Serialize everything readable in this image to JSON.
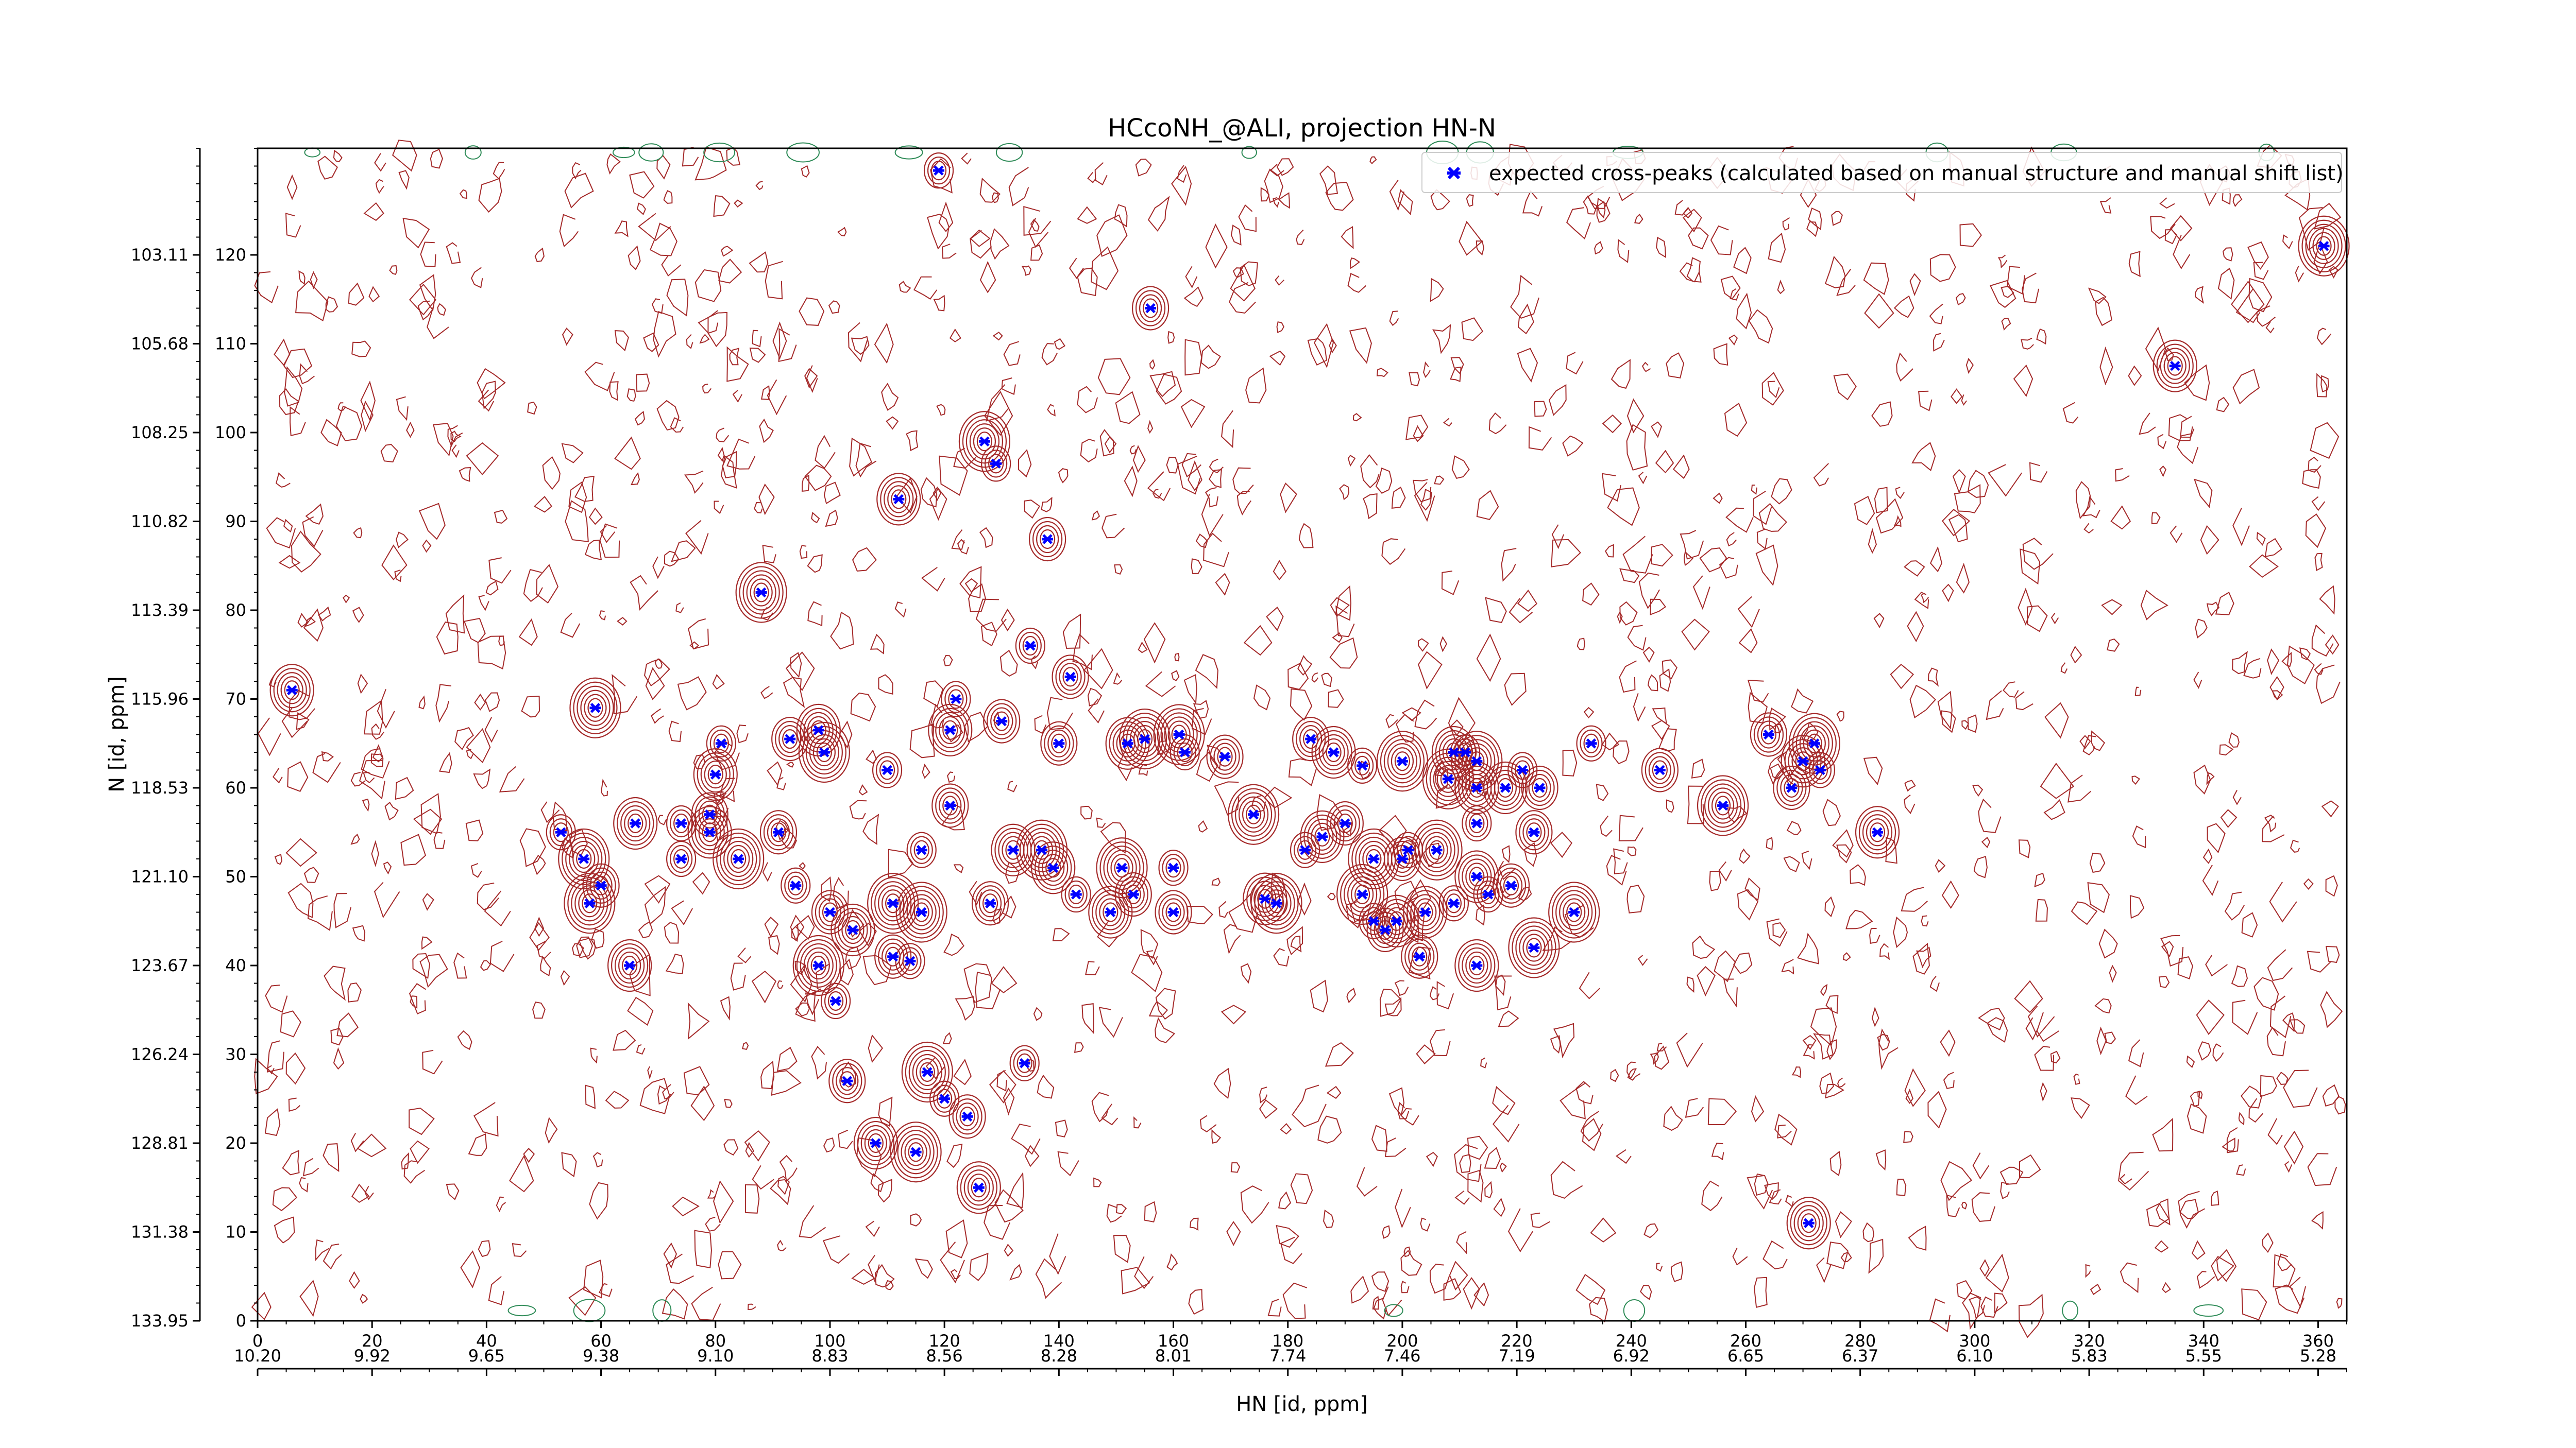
{
  "chart_data": {
    "type": "scatter",
    "title": "HCcoNH_@ALI, projection HN-N",
    "xlabel": "HN [id, ppm]",
    "ylabel": "N [id, ppm]",
    "xlim": [
      0,
      365
    ],
    "ylim": [
      0,
      132
    ],
    "grid": false,
    "legend_position": "top-right",
    "x_ticks": [
      "0",
      "20",
      "40",
      "60",
      "80",
      "100",
      "120",
      "140",
      "160",
      "180",
      "200",
      "220",
      "240",
      "260",
      "280",
      "300",
      "320",
      "340",
      "360"
    ],
    "x_ticks_secondary": [
      "10.20",
      "9.92",
      "9.65",
      "9.38",
      "9.10",
      "8.83",
      "8.56",
      "8.28",
      "8.01",
      "7.74",
      "7.46",
      "7.19",
      "6.92",
      "6.65",
      "6.37",
      "6.10",
      "5.83",
      "5.55",
      "5.28"
    ],
    "y_ticks": [
      "0",
      "10",
      "20",
      "30",
      "40",
      "50",
      "60",
      "70",
      "80",
      "90",
      "100",
      "110",
      "120"
    ],
    "y_ticks_secondary": [
      "133.95",
      "131.38",
      "128.81",
      "126.24",
      "123.67",
      "121.10",
      "118.53",
      "115.96",
      "113.39",
      "110.82",
      "108.25",
      "105.68",
      "103.11"
    ],
    "colors": {
      "marker": "#0000ff",
      "contour_positive": "#a52a2a",
      "contour_negative": "#2e8b57"
    },
    "series": [
      {
        "name": "expected cross-peaks (calculated based on manual structure and manual shift list)",
        "marker": "x",
        "points": [
          [
            119,
            129.5
          ],
          [
            156,
            114
          ],
          [
            335,
            107.5
          ],
          [
            127,
            99
          ],
          [
            129,
            96.5
          ],
          [
            138,
            88
          ],
          [
            112,
            92.5
          ],
          [
            88,
            82
          ],
          [
            135,
            76
          ],
          [
            142,
            72.5
          ],
          [
            6,
            71
          ],
          [
            59,
            69
          ],
          [
            122,
            70
          ],
          [
            130,
            67.5
          ],
          [
            121,
            66.5
          ],
          [
            161,
            66
          ],
          [
            81,
            65
          ],
          [
            93,
            65.5
          ],
          [
            98,
            66.5
          ],
          [
            99,
            64
          ],
          [
            110,
            62
          ],
          [
            140,
            65
          ],
          [
            152,
            65
          ],
          [
            155,
            65.5
          ],
          [
            162,
            64
          ],
          [
            169,
            63.5
          ],
          [
            188,
            64
          ],
          [
            200,
            63
          ],
          [
            193,
            62.5
          ],
          [
            184,
            65.5
          ],
          [
            186,
            54.5
          ],
          [
            174,
            57
          ],
          [
            233,
            65
          ],
          [
            245,
            62
          ],
          [
            209,
            64
          ],
          [
            213,
            63
          ],
          [
            221,
            62
          ],
          [
            224,
            60
          ],
          [
            218,
            60
          ],
          [
            256,
            58
          ],
          [
            74,
            56
          ],
          [
            79,
            57
          ],
          [
            80,
            61.5
          ],
          [
            84,
            52
          ],
          [
            94,
            49
          ],
          [
            91,
            55
          ],
          [
            79,
            55
          ],
          [
            111,
            47
          ],
          [
            116,
            53
          ],
          [
            121,
            58
          ],
          [
            132,
            53
          ],
          [
            137,
            53
          ],
          [
            143,
            48
          ],
          [
            128,
            47
          ],
          [
            139,
            51
          ],
          [
            151,
            51
          ],
          [
            160,
            51
          ],
          [
            153,
            48
          ],
          [
            149,
            46
          ],
          [
            116,
            46
          ],
          [
            114,
            40.5
          ],
          [
            111,
            41
          ],
          [
            65,
            40
          ],
          [
            58,
            47
          ],
          [
            53,
            55
          ],
          [
            60,
            49
          ],
          [
            66,
            56
          ],
          [
            57,
            52
          ],
          [
            74,
            52
          ],
          [
            100,
            46
          ],
          [
            104,
            44
          ],
          [
            98,
            40
          ],
          [
            101,
            36
          ],
          [
            103,
            27
          ],
          [
            108,
            20
          ],
          [
            115,
            19
          ],
          [
            120,
            25
          ],
          [
            124,
            23
          ],
          [
            126,
            15
          ],
          [
            117,
            28
          ],
          [
            134,
            29
          ],
          [
            160,
            46
          ],
          [
            176,
            47.5
          ],
          [
            178,
            47
          ],
          [
            195,
            45
          ],
          [
            197,
            44
          ],
          [
            199,
            45
          ],
          [
            195,
            52
          ],
          [
            201,
            53
          ],
          [
            203,
            41
          ],
          [
            213,
            40
          ],
          [
            223,
            42
          ],
          [
            215,
            48
          ],
          [
            200,
            52
          ],
          [
            204,
            46
          ],
          [
            230,
            46
          ],
          [
            209,
            47
          ],
          [
            219,
            49
          ],
          [
            213,
            50
          ],
          [
            206,
            53
          ],
          [
            213,
            56
          ],
          [
            223,
            55
          ],
          [
            213,
            60
          ],
          [
            208,
            61
          ],
          [
            211,
            64
          ],
          [
            264,
            66
          ],
          [
            270,
            63
          ],
          [
            272,
            65
          ],
          [
            273,
            62
          ],
          [
            268,
            60
          ],
          [
            283,
            55
          ],
          [
            193,
            48
          ],
          [
            183,
            53
          ],
          [
            190,
            56
          ],
          [
            271,
            11
          ],
          [
            361,
            121
          ]
        ]
      }
    ]
  }
}
